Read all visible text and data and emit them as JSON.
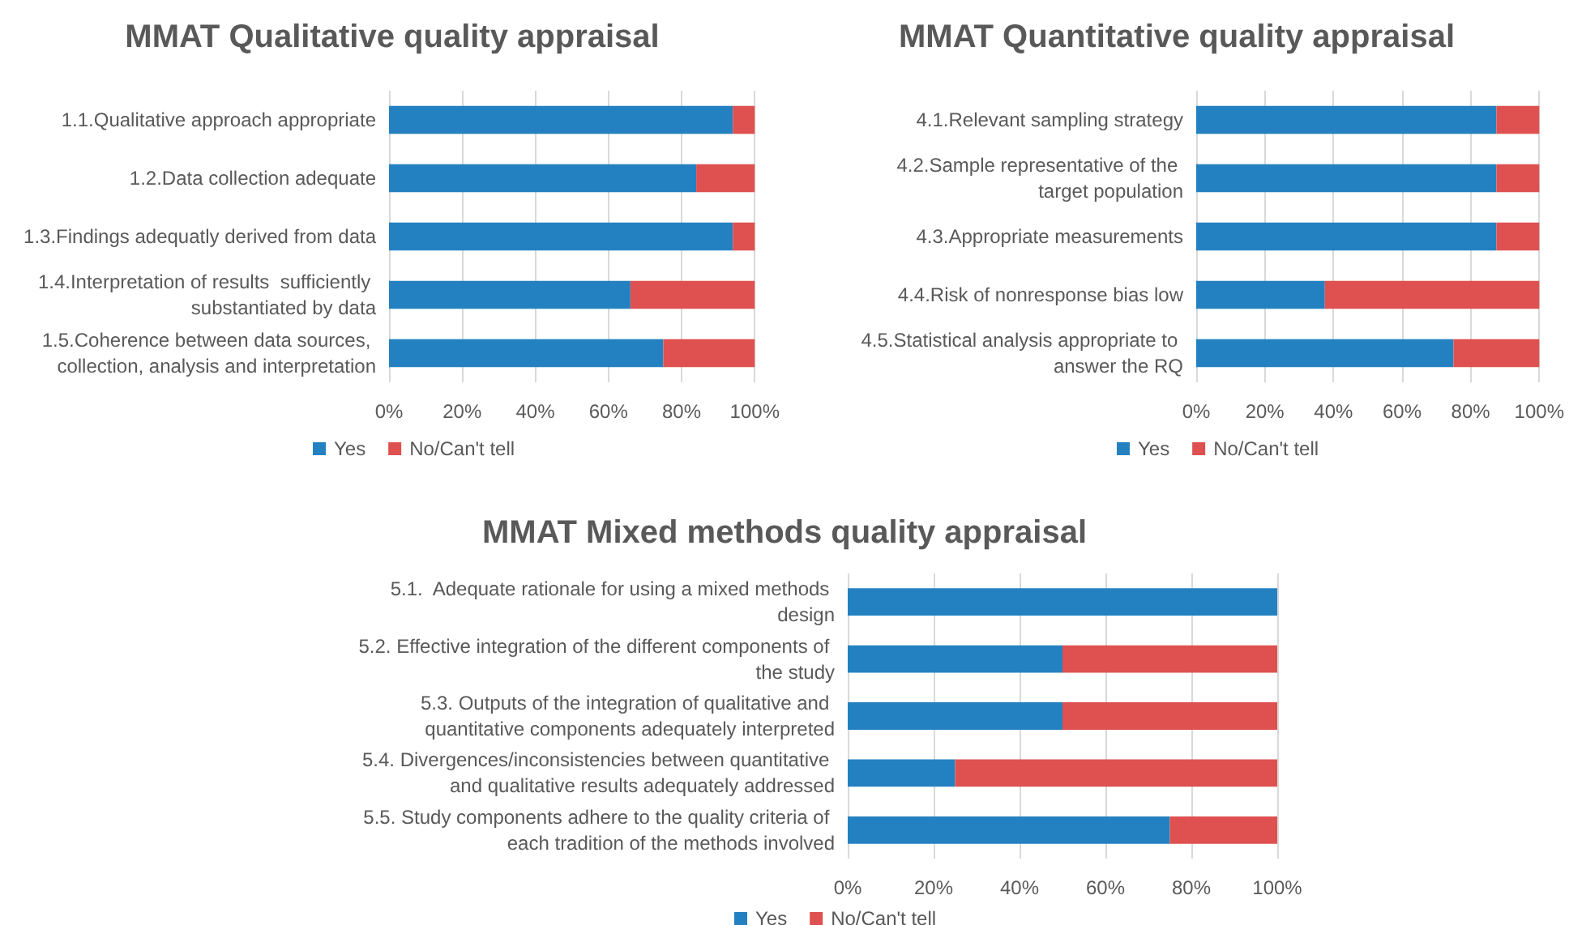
{
  "chart_data": [
    {
      "type": "bar",
      "orientation": "horizontal",
      "stacked": true,
      "title": "MMAT Qualitative quality appraisal",
      "categories": [
        "1.1.Qualitative approach appropriate",
        "1.2.Data collection adequate",
        "1.3.Findings adequatly derived from data",
        "1.4.Interpretation of results  sufficiently substantiated by data",
        "1.5.Coherence between data sources, collection, analysis and interpretation"
      ],
      "series": [
        {
          "name": "Yes",
          "color": "#2481c1",
          "values": [
            94,
            84,
            94,
            66,
            75
          ]
        },
        {
          "name": "No/Can't tell",
          "color": "#de5150",
          "values": [
            6,
            16,
            6,
            34,
            25
          ]
        }
      ],
      "xlim": [
        0,
        100
      ],
      "xticks": [
        {
          "value": 0,
          "label": "0%"
        },
        {
          "value": 20,
          "label": "20%"
        },
        {
          "value": 40,
          "label": "40%"
        },
        {
          "value": 60,
          "label": "60%"
        },
        {
          "value": 80,
          "label": "80%"
        },
        {
          "value": 100,
          "label": "100%"
        }
      ],
      "grid": "x",
      "legend": "bottom left"
    },
    {
      "type": "bar",
      "orientation": "horizontal",
      "stacked": true,
      "title": "MMAT Quantitative quality appraisal",
      "categories": [
        "4.1.Relevant sampling strategy",
        "4.2.Sample representative of the target population",
        "4.3.Appropriate measurements",
        "4.4.Risk of nonresponse bias low",
        "4.5.Statistical analysis appropriate to answer the RQ"
      ],
      "series": [
        {
          "name": "Yes",
          "color": "#2481c1",
          "values": [
            87.5,
            87.5,
            87.5,
            37.5,
            75
          ]
        },
        {
          "name": "No/Can't tell",
          "color": "#de5150",
          "values": [
            12.5,
            12.5,
            12.5,
            62.5,
            25
          ]
        }
      ],
      "xlim": [
        0,
        100
      ],
      "xticks": [
        {
          "value": 0,
          "label": "0%"
        },
        {
          "value": 20,
          "label": "20%"
        },
        {
          "value": 40,
          "label": "40%"
        },
        {
          "value": 60,
          "label": "60%"
        },
        {
          "value": 80,
          "label": "80%"
        },
        {
          "value": 100,
          "label": "100%"
        }
      ],
      "grid": "x",
      "legend": "bottom left"
    },
    {
      "type": "bar",
      "orientation": "horizontal",
      "stacked": true,
      "title": "MMAT Mixed methods quality appraisal",
      "categories": [
        "5.1.  Adequate rationale for using a mixed methods design",
        "5.2. Effective integration of the different components of the study",
        "5.3. Outputs of the integration of qualitative and quantitative components adequately interpreted",
        "5.4. Divergences/inconsistencies between quantitative and qualitative results adequately addressed",
        "5.5. Study components adhere to the quality criteria of each tradition of the methods involved"
      ],
      "series": [
        {
          "name": "Yes",
          "color": "#2481c1",
          "values": [
            100,
            50,
            50,
            25,
            75
          ]
        },
        {
          "name": "No/Can't tell",
          "color": "#de5150",
          "values": [
            0,
            50,
            50,
            75,
            25
          ]
        }
      ],
      "xlim": [
        0,
        100
      ],
      "xticks": [
        {
          "value": 0,
          "label": "0%"
        },
        {
          "value": 20,
          "label": "20%"
        },
        {
          "value": 40,
          "label": "40%"
        },
        {
          "value": 60,
          "label": "60%"
        },
        {
          "value": 80,
          "label": "80%"
        },
        {
          "value": 100,
          "label": "100%"
        }
      ],
      "grid": "x",
      "legend": "bottom left"
    }
  ]
}
